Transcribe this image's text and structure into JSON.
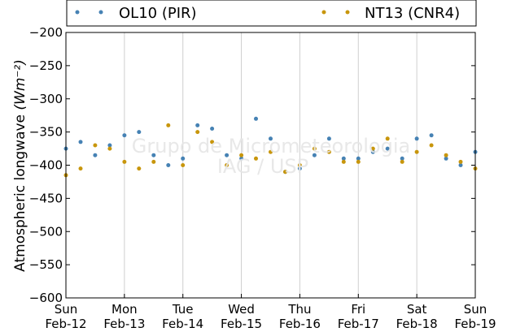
{
  "chart_data": {
    "type": "scatter",
    "title": "",
    "xlabel": "",
    "ylabel": "Atmospheric longwave",
    "ylabel_unit": "(Wm⁻²)",
    "ylim": [
      -600,
      -200
    ],
    "yticks": [
      -200,
      -250,
      -300,
      -350,
      -400,
      -450,
      -500,
      -550,
      -600
    ],
    "xlim": [
      "2017-02-12",
      "2017-02-19"
    ],
    "xticks": [
      {
        "day": "Sun",
        "date": "Feb-12"
      },
      {
        "day": "Mon",
        "date": "Feb-13"
      },
      {
        "day": "Tue",
        "date": "Feb-14"
      },
      {
        "day": "Wed",
        "date": "Feb-15"
      },
      {
        "day": "Thu",
        "date": "Feb-16"
      },
      {
        "day": "Fri",
        "date": "Feb-17"
      },
      {
        "day": "Sat",
        "date": "Feb-18"
      },
      {
        "day": "Sun",
        "date": "Feb-19"
      }
    ],
    "grid": "vertical",
    "legend_position": "top",
    "watermark": [
      "Grupo de Micrometeorologia",
      "IAG / USP"
    ],
    "series": [
      {
        "name": "OL10 (PIR)",
        "color": "#4682b4",
        "x": [
          "2017-02-12 00:00",
          "2017-02-12 06:00",
          "2017-02-12 12:00",
          "2017-02-12 18:00",
          "2017-02-13 00:00",
          "2017-02-13 06:00",
          "2017-02-13 12:00",
          "2017-02-13 18:00",
          "2017-02-14 00:00",
          "2017-02-14 06:00",
          "2017-02-14 12:00",
          "2017-02-14 18:00",
          "2017-02-15 00:00",
          "2017-02-15 06:00",
          "2017-02-15 12:00",
          "2017-02-15 18:00",
          "2017-02-16 00:00",
          "2017-02-16 06:00",
          "2017-02-16 12:00",
          "2017-02-16 18:00",
          "2017-02-17 00:00",
          "2017-02-17 06:00",
          "2017-02-17 12:00",
          "2017-02-17 18:00",
          "2017-02-18 00:00",
          "2017-02-18 06:00",
          "2017-02-18 12:00",
          "2017-02-18 18:00",
          "2017-02-19 00:00"
        ],
        "y": [
          -375,
          -365,
          -385,
          -370,
          -355,
          -350,
          -385,
          -400,
          -390,
          -340,
          -345,
          -385,
          -390,
          -330,
          -360,
          -410,
          -405,
          -385,
          -360,
          -390,
          -390,
          -380,
          -375,
          -390,
          -360,
          -355,
          -390,
          -400,
          -380
        ]
      },
      {
        "name": "NT13 (CNR4)",
        "color": "#c8960c",
        "x": [
          "2017-02-12 00:00",
          "2017-02-12 06:00",
          "2017-02-12 12:00",
          "2017-02-12 18:00",
          "2017-02-13 00:00",
          "2017-02-13 06:00",
          "2017-02-13 12:00",
          "2017-02-13 18:00",
          "2017-02-14 00:00",
          "2017-02-14 06:00",
          "2017-02-14 12:00",
          "2017-02-14 18:00",
          "2017-02-15 00:00",
          "2017-02-15 06:00",
          "2017-02-15 12:00",
          "2017-02-15 18:00",
          "2017-02-16 00:00",
          "2017-02-16 06:00",
          "2017-02-16 12:00",
          "2017-02-16 18:00",
          "2017-02-17 00:00",
          "2017-02-17 06:00",
          "2017-02-17 12:00",
          "2017-02-17 18:00",
          "2017-02-18 00:00",
          "2017-02-18 06:00",
          "2017-02-18 12:00",
          "2017-02-18 18:00",
          "2017-02-19 00:00"
        ],
        "y": [
          -415,
          -405,
          -370,
          -375,
          -395,
          -405,
          -395,
          -340,
          -400,
          -350,
          -365,
          -400,
          -385,
          -390,
          -380,
          -410,
          -400,
          -375,
          -380,
          -395,
          -395,
          -375,
          -360,
          -395,
          -380,
          -370,
          -385,
          -395,
          -405
        ]
      }
    ]
  }
}
